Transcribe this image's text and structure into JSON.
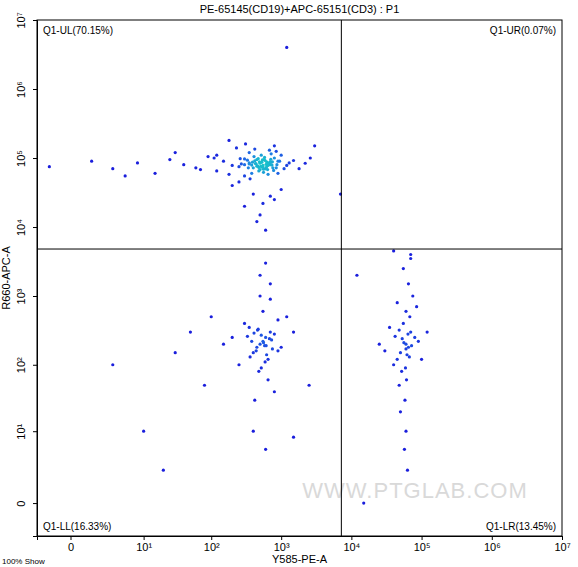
{
  "chart_data": {
    "type": "scatter",
    "title": "PE-65145(CD19)+APC-65151(CD3) : P1",
    "x_label": "Y585-PE-A",
    "y_label": "R660-APC-A",
    "log": true,
    "color": "#1a1adc",
    "marker": "dot",
    "xlim": [
      -2,
      10000000
    ],
    "ylim": [
      -2,
      10000000
    ],
    "xticks": [
      0,
      {
        "value": 10,
        "label": "10¹"
      },
      {
        "value": 100,
        "label": "10²"
      },
      {
        "value": 1000,
        "label": "10³"
      },
      {
        "value": 10000,
        "label": "10⁴"
      },
      {
        "value": 100000,
        "label": "10⁵"
      },
      {
        "value": 1000000,
        "label": "10⁶"
      },
      {
        "value": 10000000,
        "label": "10⁷"
      }
    ],
    "yticks": [
      0,
      {
        "value": 10,
        "label": "10¹"
      },
      {
        "value": 100,
        "label": "10²"
      },
      {
        "value": 1000,
        "label": "10³"
      },
      {
        "value": 10000,
        "label": "10⁴"
      },
      {
        "value": 100000,
        "label": "10⁵"
      },
      {
        "value": 1000000,
        "label": "10⁶"
      },
      {
        "value": 10000000,
        "label": "10⁷"
      }
    ],
    "gates": {
      "x": 7200,
      "y": 4800
    },
    "quadrant_labels": [
      "Q1-UL(70.15%)",
      "Q1-UR(0.07%)",
      "Q1-LL(16.33%)",
      "Q1-LR(13.45%)"
    ],
    "footer": "100% Show",
    "watermark": "WWW.PTGLAB.COM",
    "x": [
      300,
      450,
      600,
      520,
      380,
      700,
      800,
      250,
      900,
      1100,
      350,
      480,
      620,
      550,
      410,
      760,
      300,
      680,
      590,
      430,
      510,
      470,
      640,
      720,
      390,
      560,
      330,
      870,
      1000,
      1300,
      200,
      150,
      120,
      90,
      60,
      40,
      25,
      15,
      8,
      3,
      1,
      -1,
      5,
      30,
      70,
      110,
      180,
      230,
      270,
      310,
      360,
      420,
      490,
      530,
      580,
      650,
      710,
      780,
      850,
      950,
      1200,
      1500,
      1800,
      2200,
      2600,
      260,
      340,
      440,
      540,
      640,
      740,
      460,
      500,
      560,
      610,
      380,
      420,
      480,
      530,
      570,
      620,
      660,
      700,
      300,
      350,
      800,
      250,
      900,
      180,
      120,
      600,
      400,
      500,
      700,
      450,
      550,
      650,
      350,
      750,
      850,
      300,
      500,
      800,
      400,
      600,
      200,
      1000,
      700,
      450,
      550,
      1200,
      7000,
      12000,
      3000,
      500,
      600,
      400,
      700,
      450,
      550,
      650,
      350,
      800,
      900,
      300,
      1000,
      1200,
      250,
      200,
      550,
      480,
      620,
      700,
      380,
      500,
      650,
      420,
      580,
      750,
      330,
      460,
      520,
      900,
      1500,
      150,
      100,
      80,
      50,
      30,
      700,
      500,
      400,
      600,
      800,
      560,
      440,
      680,
      360,
      520,
      610,
      470,
      590,
      410,
      730,
      10,
      20,
      3,
      1500,
      2500,
      600,
      60000,
      50000,
      70000,
      45000,
      80000,
      55000,
      65000,
      40000,
      90000,
      35000,
      60000,
      52000,
      75000,
      48000,
      68000,
      58000,
      62000,
      85000,
      42000,
      30000,
      65000,
      55000,
      70000,
      50000,
      60000,
      57000,
      63000,
      45000,
      100000,
      120000,
      25000,
      60000,
      67000,
      53000,
      72000,
      59000,
      48000,
      64000,
      56000,
      61000,
      40000,
      70000,
      15000
    ],
    "values": [
      80000,
      95000,
      70000,
      110000,
      60000,
      85000,
      100000,
      75000,
      90000,
      70000,
      120000,
      65000,
      88000,
      78000,
      105000,
      72000,
      55000,
      130000,
      92000,
      83000,
      76000,
      98000,
      68000,
      115000,
      87000,
      62000,
      93000,
      80000,
      110000,
      85000,
      78000,
      90000,
      65000,
      105000,
      72000,
      80000,
      95000,
      60000,
      85000,
      70000,
      90000,
      75000,
      55000,
      120000,
      68000,
      100000,
      58000,
      140000,
      82000,
      160000,
      50000,
      135000,
      88000,
      74000,
      102000,
      58000,
      96000,
      66000,
      125000,
      90000,
      78000,
      92000,
      70000,
      84000,
      100000,
      98000,
      72000,
      82000,
      94000,
      86000,
      79000,
      77000,
      84000,
      69000,
      81000,
      79000,
      91000,
      73000,
      87000,
      95000,
      75000,
      83000,
      89000,
      97000,
      85000,
      150000,
      45000,
      60000,
      180000,
      110000,
      70000,
      72000,
      68000,
      80000,
      76000,
      74000,
      78000,
      82000,
      88000,
      72000,
      20000,
      15000,
      25000,
      30000,
      9000,
      40000,
      35000,
      28000,
      12000,
      22000,
      4000000,
      30000,
      2000,
      150000,
      200,
      250,
      150,
      300,
      180,
      220,
      120,
      350,
      280,
      160,
      400,
      180,
      500,
      100,
      250,
      600,
      80,
      140,
      900,
      220,
      1000,
      60,
      30,
      190,
      170,
      260,
      320,
      90,
      450,
      300,
      200,
      500,
      50,
      300,
      150,
      1500,
      2000,
      10,
      5,
      40,
      210,
      160,
      240,
      130,
      270,
      190,
      330,
      110,
      290,
      230,
      10,
      2,
      100,
      8,
      50,
      3000,
      200,
      150,
      300,
      120,
      250,
      400,
      180,
      100,
      220,
      350,
      600,
      80,
      1000,
      50,
      500,
      30,
      140,
      700,
      260,
      160,
      1500,
      2500,
      3500,
      20,
      10,
      5,
      2,
      800,
      120,
      300,
      200,
      170,
      130,
      240,
      190,
      90,
      320,
      280,
      210,
      60,
      4500,
      4000,
      0
    ]
  }
}
